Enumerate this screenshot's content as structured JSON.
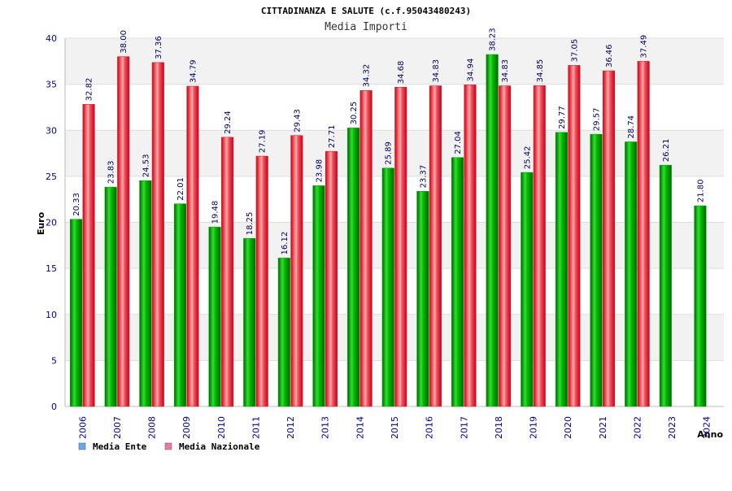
{
  "colors": {
    "ente": "#00aa00",
    "nazionale": "#dd2233",
    "legend_ente": "#66aaee",
    "legend_nazionale": "#ee77aa",
    "tick": "#0000aa",
    "band": "#f2f2f2"
  },
  "chart_data": {
    "type": "bar",
    "title": "CITTADINANZA E SALUTE (c.f.95043480243)",
    "subtitle": "Media Importi",
    "xlabel": "Anno",
    "ylabel": "Euro",
    "ylim": [
      0,
      40
    ],
    "yticks": [
      0,
      5,
      10,
      15,
      20,
      25,
      30,
      35,
      40
    ],
    "grid": true,
    "legend_position": "bottom-left",
    "categories": [
      "2006",
      "2007",
      "2008",
      "2009",
      "2010",
      "2011",
      "2012",
      "2013",
      "2014",
      "2015",
      "2016",
      "2017",
      "2018",
      "2019",
      "2020",
      "2021",
      "2022",
      "2023",
      "2024"
    ],
    "series": [
      {
        "name": "Media Ente",
        "values": [
          20.33,
          23.83,
          24.53,
          22.01,
          19.48,
          18.25,
          16.12,
          23.98,
          30.25,
          25.89,
          23.37,
          27.04,
          38.23,
          25.42,
          29.77,
          29.57,
          28.74,
          26.21,
          21.8
        ],
        "labels": [
          "20.33",
          "23.83",
          "24.53",
          "22.01",
          "19.48",
          "18.25",
          "16.12",
          "23.98",
          "30.25",
          "25.89",
          "23.37",
          "27.04",
          "38.23",
          "25.42",
          "29.77",
          "29.57",
          "28.74",
          "26.21",
          "21.80"
        ]
      },
      {
        "name": "Media Nazionale",
        "values": [
          32.82,
          38.0,
          37.36,
          34.79,
          29.24,
          27.19,
          29.43,
          27.71,
          34.32,
          34.68,
          34.83,
          34.94,
          34.83,
          34.85,
          37.05,
          36.46,
          37.49,
          null,
          null
        ],
        "labels": [
          "32.82",
          "38.00",
          "37.36",
          "34.79",
          "29.24",
          "27.19",
          "29.43",
          "27.71",
          "34.32",
          "34.68",
          "34.83",
          "34.94",
          "34.83",
          "34.85",
          "37.05",
          "36.46",
          "37.49",
          null,
          null
        ]
      }
    ]
  }
}
